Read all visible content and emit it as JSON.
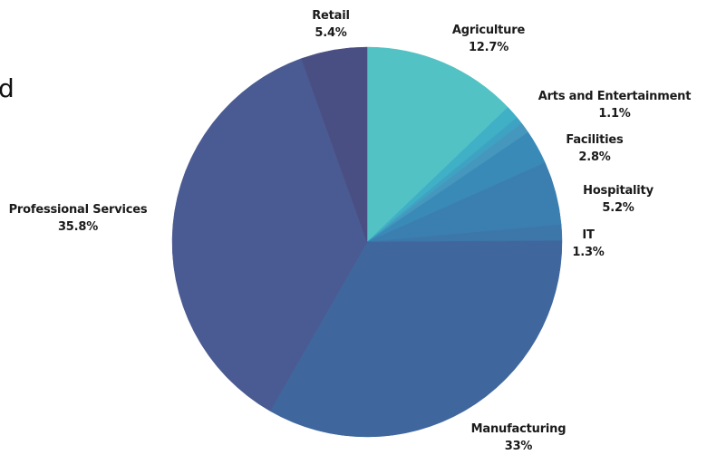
{
  "edge_glyph": "d",
  "chart_data": {
    "type": "pie",
    "title": "",
    "slices": [
      {
        "label": "Agriculture",
        "value": 12.7,
        "value_label": "12.7%",
        "color": "#52c2c4"
      },
      {
        "label": "Arts and Entertainment",
        "value": 1.1,
        "value_label": "1.1%",
        "color": "#3fb0c6"
      },
      {
        "label": "",
        "value": 0.6,
        "value_label": "",
        "color": "#3ea3c2"
      },
      {
        "label": "",
        "value": 0.9,
        "value_label": "",
        "color": "#4597bd"
      },
      {
        "label": "Facilities",
        "value": 2.8,
        "value_label": "2.8%",
        "color": "#3a8ab8"
      },
      {
        "label": "Hospitality",
        "value": 5.2,
        "value_label": "5.2%",
        "color": "#3a7fb0"
      },
      {
        "label": "IT",
        "value": 1.3,
        "value_label": "1.3%",
        "color": "#3d77a9"
      },
      {
        "label": "Manufacturing",
        "value": 33.0,
        "value_label": "33%",
        "color": "#3f679e"
      },
      {
        "label": "Professional Services",
        "value": 35.8,
        "value_label": "35.8%",
        "color": "#4a5a92"
      },
      {
        "label": "Retail",
        "value": 5.4,
        "value_label": "5.4%",
        "color": "#4a4f83"
      }
    ]
  }
}
